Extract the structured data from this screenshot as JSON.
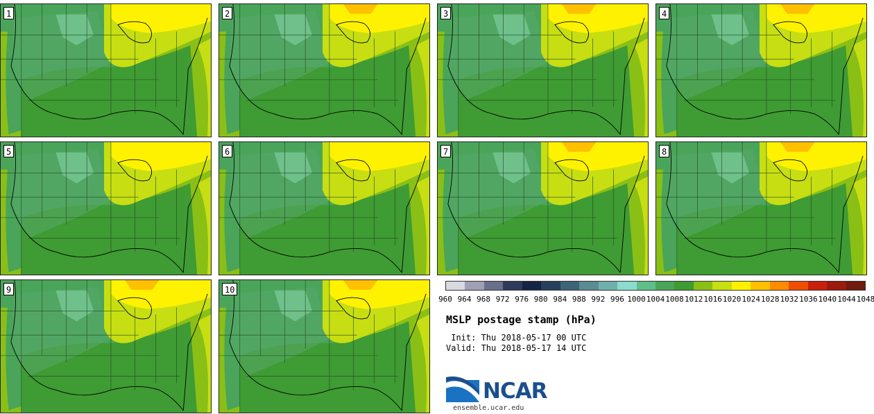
{
  "panels": [
    {
      "label": "1"
    },
    {
      "label": "2"
    },
    {
      "label": "3"
    },
    {
      "label": "4"
    },
    {
      "label": "5"
    },
    {
      "label": "6"
    },
    {
      "label": "7"
    },
    {
      "label": "8"
    },
    {
      "label": "9"
    },
    {
      "label": "10"
    }
  ],
  "colorbar": {
    "colors": [
      "#d9d9e0",
      "#a0a0b4",
      "#6a6f8c",
      "#2e3a5a",
      "#162444",
      "#26405c",
      "#3f6479",
      "#5b8b93",
      "#6fb0ad",
      "#8bdccd",
      "#5fbf8a",
      "#4aa55a",
      "#3f9b33",
      "#8abf16",
      "#c7de13",
      "#fff200",
      "#ffc000",
      "#ff8c00",
      "#ef4d00",
      "#c8200a",
      "#9a1a0e",
      "#701a10"
    ],
    "tick_labels": [
      "960",
      "964",
      "968",
      "972",
      "976",
      "980",
      "984",
      "988",
      "992",
      "996",
      "1000",
      "1004",
      "1008",
      "1012",
      "1016",
      "1020",
      "1024",
      "1028",
      "1032",
      "1036",
      "1040",
      "1044",
      "1048"
    ]
  },
  "title": "MSLP postage stamp (hPa)",
  "init": " Init: Thu 2018-05-17 00 UTC",
  "valid": "Valid: Thu 2018-05-17 14 UTC",
  "logo_text": "NCAR",
  "url": "ensemble.ucar.edu"
}
